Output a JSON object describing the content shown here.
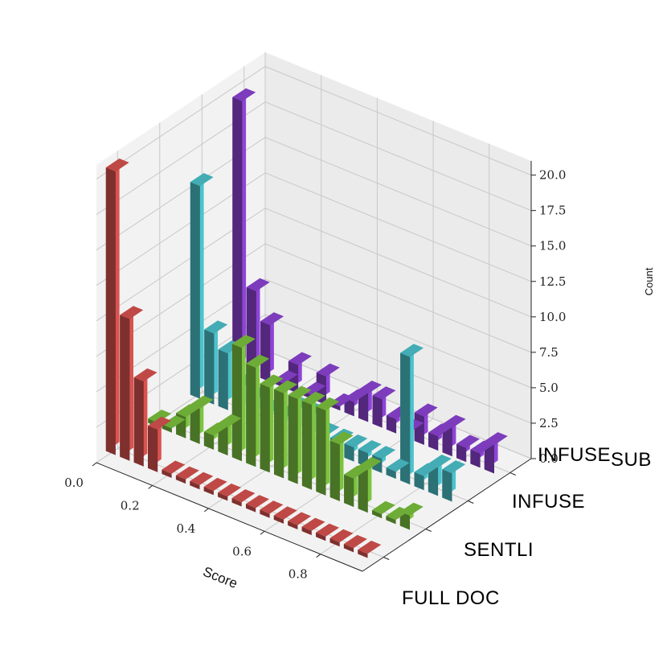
{
  "chart_data": {
    "type": "bar",
    "projection": "3d",
    "title": "",
    "xlabel": "Score",
    "zlabel": "Count",
    "xlim": [
      0.0,
      0.95
    ],
    "zlim": [
      0,
      21
    ],
    "x_ticks": [
      "0.0",
      "0.2",
      "0.4",
      "0.6",
      "0.8"
    ],
    "z_ticks": [
      "0.0",
      "2.5",
      "5.0",
      "7.5",
      "10.0",
      "12.5",
      "15.0",
      "17.5",
      "20.0"
    ],
    "grid": true,
    "bin_centers": [
      0.0,
      0.05,
      0.1,
      0.15,
      0.2,
      0.25,
      0.3,
      0.35,
      0.4,
      0.45,
      0.5,
      0.55,
      0.6,
      0.65,
      0.7,
      0.75,
      0.8,
      0.85,
      0.9
    ],
    "series": [
      {
        "name": "FULL DOC",
        "color": "#d9534f",
        "values": [
          20,
          10,
          6,
          3,
          0.3,
          0.3,
          0.3,
          0.3,
          0.3,
          0.3,
          0.3,
          0.3,
          0.3,
          0.3,
          0.3,
          0.3,
          0.3,
          0.3,
          0.3
        ]
      },
      {
        "name": "SENTLI",
        "color": "#7cc43f",
        "values": [
          0.3,
          0.3,
          1.5,
          2.5,
          1,
          2,
          8,
          7,
          6,
          6,
          6,
          6,
          6,
          4,
          2,
          3,
          0.3,
          0.3,
          1
        ]
      },
      {
        "name": "INFUSE",
        "color": "#4cc3cc",
        "values": [
          15,
          5,
          4,
          2,
          1.5,
          1,
          1,
          2,
          2,
          1,
          1,
          1,
          1,
          1,
          0.5,
          9,
          1,
          2,
          2
        ]
      },
      {
        "name": "INFUSE_SUB",
        "color": "#8e44d6",
        "values": [
          19,
          6,
          4,
          0.3,
          2,
          0.3,
          2,
          0.3,
          1,
          2,
          2,
          1,
          0.5,
          2,
          1,
          2,
          1,
          1,
          2
        ]
      }
    ]
  },
  "series_labels": {
    "s0": "FULL DOC",
    "s1": "SENTLI",
    "s2_main": "INFUSE",
    "s3_main": "INFUSE",
    "s3_sub": "SUB"
  }
}
